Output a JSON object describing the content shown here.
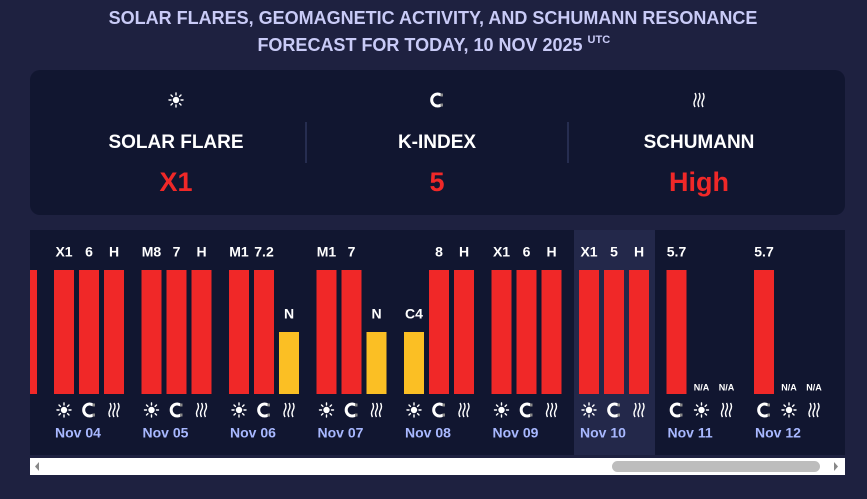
{
  "header": {
    "title_lines": [
      "SOLAR FLARES, GEOMAGNETIC ACTIVITY, AND SCHUMANN RESONANCE",
      "FORECAST FOR TODAY, 10 NOV 2025"
    ],
    "title_superscript": "UTC"
  },
  "summary": [
    {
      "label": "SOLAR FLARE",
      "value": "X1"
    },
    {
      "label": "K-INDEX",
      "value": 5
    },
    {
      "label": "SCHUMANN",
      "value": "High"
    }
  ],
  "forecast": {
    "high_color": "#f02828",
    "low_color": "#fbbf24",
    "today": 6,
    "days": [
      {
        "date": "Nov 04",
        "bars": [
          {
            "value": "X1",
            "color": "#f02828"
          },
          {
            "value": 6,
            "color": "#f02828"
          },
          {
            "value": "H",
            "color": "#f02828"
          }
        ]
      },
      {
        "date": "Nov 05",
        "bars": [
          {
            "value": "M8",
            "color": "#f02828"
          },
          {
            "value": 7,
            "color": "#f02828"
          },
          {
            "value": "H",
            "color": "#f02828"
          }
        ]
      },
      {
        "date": "Nov 06",
        "bars": [
          {
            "value": "M1",
            "color": "#f02828"
          },
          {
            "value": 7.2,
            "color": "#f02828"
          },
          {
            "value": "N",
            "color": "#fbbf24"
          }
        ]
      },
      {
        "date": "Nov 07",
        "bars": [
          {
            "value": "M1",
            "color": "#f02828"
          },
          {
            "value": 7,
            "color": "#f02828"
          },
          {
            "value": "N",
            "color": "#fbbf24"
          }
        ]
      },
      {
        "date": "Nov 08",
        "bars": [
          {
            "value": "C4",
            "color": "#fbbf24"
          },
          {
            "value": 8,
            "color": "#f02828"
          },
          {
            "value": "H",
            "color": "#f02828"
          }
        ]
      },
      {
        "date": "Nov 09",
        "bars": [
          {
            "value": "X1",
            "color": "#f02828"
          },
          {
            "value": 6,
            "color": "#f02828"
          },
          {
            "value": "H",
            "color": "#f02828"
          }
        ]
      },
      {
        "date": "Nov 10",
        "bars": [
          {
            "value": "X1",
            "color": "#f02828"
          },
          {
            "value": 5,
            "color": "#f02828"
          },
          {
            "value": "H",
            "color": "#f02828"
          }
        ]
      },
      {
        "date": "Nov 11",
        "bars": [
          {
            "value": 5.7,
            "color": "#f02828"
          },
          {
            "value": "N/A"
          },
          {
            "value": "N/A"
          }
        ]
      },
      {
        "date": "Nov 12",
        "bars": [
          {
            "value": 5.7,
            "color": "#f02828"
          },
          {
            "value": "N/A"
          },
          {
            "value": "N/A"
          }
        ]
      }
    ]
  }
}
